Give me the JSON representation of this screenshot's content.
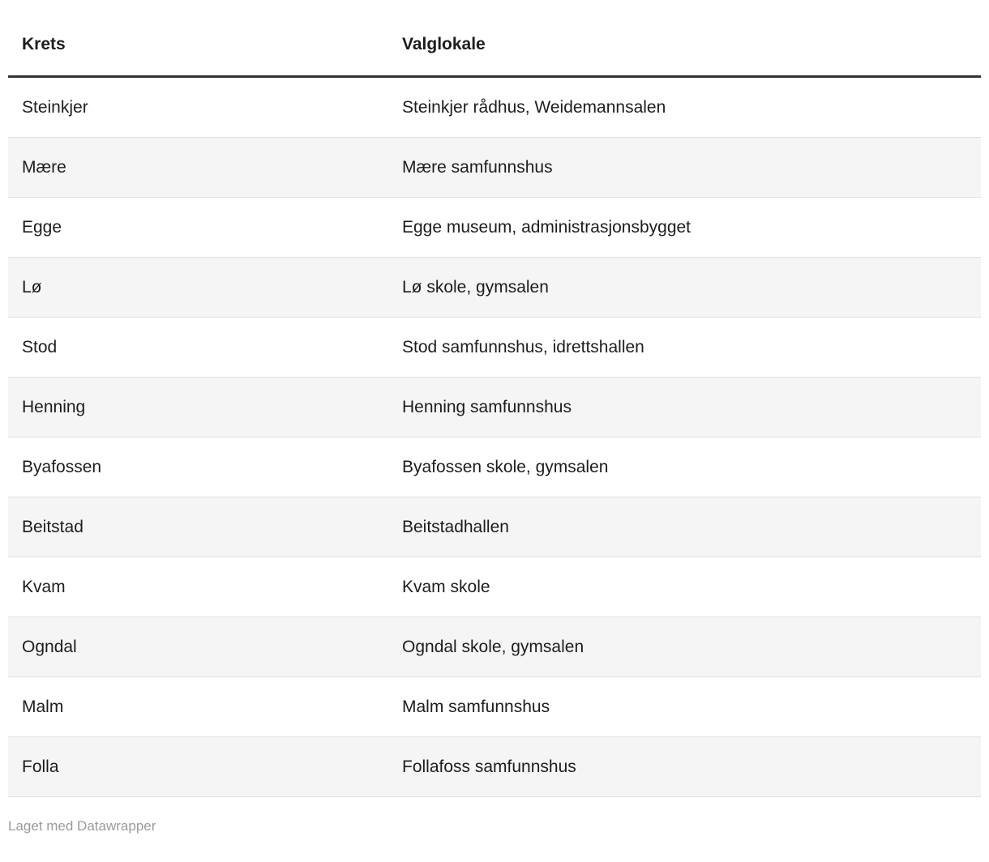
{
  "chart_data": {
    "type": "table",
    "columns": [
      "Krets",
      "Valglokale"
    ],
    "rows": [
      [
        "Steinkjer",
        "Steinkjer rådhus, Weidemannsalen"
      ],
      [
        "Mære",
        "Mære samfunnshus"
      ],
      [
        "Egge",
        "Egge museum, administrasjonsbygget"
      ],
      [
        "Lø",
        "Lø skole, gymsalen"
      ],
      [
        "Stod",
        "Stod samfunnshus, idrettshallen"
      ],
      [
        "Henning",
        "Henning samfunnshus"
      ],
      [
        "Byafossen",
        "Byafossen skole, gymsalen"
      ],
      [
        "Beitstad",
        "Beitstadhallen"
      ],
      [
        "Kvam",
        "Kvam skole"
      ],
      [
        "Ogndal",
        "Ogndal skole, gymsalen"
      ],
      [
        "Malm",
        "Malm samfunnshus"
      ],
      [
        "Folla",
        "Follafoss samfunnshus"
      ]
    ],
    "layout": {
      "striped_rows": true,
      "stripe_on": "even"
    }
  },
  "footer": {
    "credit": "Laget med Datawrapper"
  },
  "colors": {
    "text": "#1d1d1d",
    "stripe": "#f5f5f5",
    "row_separator": "#e0e0e0",
    "header_rule": "#333333",
    "credit_text": "#9b9b9b",
    "background": "#ffffff"
  }
}
